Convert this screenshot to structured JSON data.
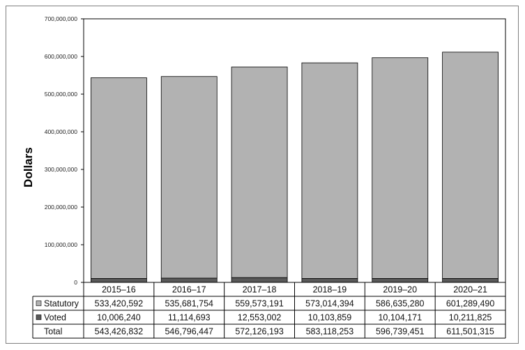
{
  "chart_data": {
    "type": "bar",
    "stacked": true,
    "title": "",
    "xlabel": "",
    "ylabel": "Dollars",
    "ylim": [
      0,
      700000000
    ],
    "yticks": [
      "0",
      "100,000,000",
      "200,000,000",
      "300,000,000",
      "400,000,000",
      "500,000,000",
      "600,000,000",
      "700,000,000"
    ],
    "ytick_values": [
      0,
      100000000,
      200000000,
      300000000,
      400000000,
      500000000,
      600000000,
      700000000
    ],
    "categories": [
      "2015–16",
      "2016–17",
      "2017–18",
      "2018–19",
      "2019–20",
      "2020–21"
    ],
    "series": [
      {
        "name": "Voted",
        "color": "#595959",
        "values": [
          10006240,
          11114693,
          12553002,
          10103859,
          10104171,
          10211825
        ],
        "display": [
          "10,006,240",
          "11,114,693",
          "12,553,002",
          "10,103,859",
          "10,104,171",
          "10,211,825"
        ]
      },
      {
        "name": "Statutory",
        "color": "#b2b2b2",
        "values": [
          533420592,
          535681754,
          559573191,
          573014394,
          586635280,
          601289490
        ],
        "display": [
          "533,420,592",
          "535,681,754",
          "559,573,191",
          "573,014,394",
          "586,635,280",
          "601,289,490"
        ]
      }
    ],
    "table_rows": [
      {
        "label": "Statutory",
        "series": "Statutory"
      },
      {
        "label": "Voted",
        "series": "Voted"
      },
      {
        "label": "Total",
        "series": null
      }
    ],
    "totals_display": [
      "543,426,832",
      "546,796,447",
      "572,126,193",
      "583,118,253",
      "596,739,451",
      "611,501,315"
    ],
    "grid": false,
    "legend": "data-table"
  }
}
